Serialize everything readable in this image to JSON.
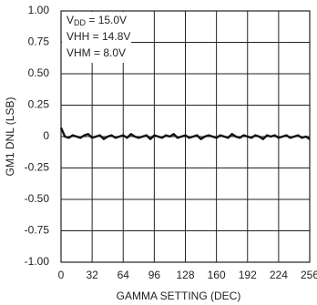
{
  "chart_data": {
    "type": "line",
    "xlabel": "GAMMA SETTING (DEC)",
    "ylabel": "GM1 DNL (LSB)",
    "annotations": [
      [
        "V",
        "DD",
        " = 15.0V"
      ],
      [
        "VHH = 14.8V"
      ],
      [
        "VHM = 8.0V"
      ]
    ],
    "x": [
      0,
      4,
      8,
      12,
      16,
      20,
      24,
      28,
      32,
      36,
      40,
      44,
      48,
      52,
      56,
      60,
      64,
      68,
      72,
      76,
      80,
      84,
      88,
      92,
      96,
      100,
      104,
      108,
      112,
      116,
      120,
      124,
      128,
      132,
      136,
      140,
      144,
      148,
      152,
      156,
      160,
      164,
      168,
      172,
      176,
      180,
      184,
      188,
      192,
      196,
      200,
      204,
      208,
      212,
      216,
      220,
      224,
      228,
      232,
      236,
      240,
      244,
      248,
      252,
      256
    ],
    "series": [
      {
        "name": "GM1 DNL",
        "color": "#111111",
        "values": [
          0.07,
          0.0,
          -0.01,
          0.01,
          0.0,
          -0.01,
          0.01,
          0.02,
          -0.01,
          0.0,
          0.01,
          -0.02,
          0.0,
          0.01,
          -0.01,
          0.0,
          0.01,
          -0.01,
          0.02,
          0.0,
          -0.01,
          0.0,
          0.01,
          -0.02,
          0.01,
          0.0,
          -0.01,
          0.01,
          0.0,
          0.02,
          -0.01,
          0.0,
          0.01,
          -0.01,
          0.0,
          0.01,
          -0.02,
          0.0,
          0.01,
          0.0,
          -0.01,
          0.01,
          0.0,
          -0.01,
          0.02,
          0.0,
          -0.01,
          0.01,
          0.0,
          -0.01,
          0.01,
          0.0,
          -0.02,
          0.01,
          0.0,
          0.01,
          -0.01,
          0.0,
          0.01,
          -0.01,
          0.0,
          0.01,
          -0.01,
          0.0,
          -0.02
        ]
      }
    ],
    "xlim": [
      0,
      256
    ],
    "xticks": [
      0,
      32,
      64,
      96,
      128,
      160,
      192,
      224,
      256
    ],
    "ylim": [
      -1,
      1
    ],
    "yticks": [
      {
        "value": -1,
        "label": "-1.00"
      },
      {
        "value": -0.75,
        "label": "-0.75"
      },
      {
        "value": -0.5,
        "label": "-0.50"
      },
      {
        "value": -0.25,
        "label": "-0.25"
      },
      0,
      {
        "value": 0.25,
        "label": "0.25"
      },
      {
        "value": 0.5,
        "label": "0.50"
      },
      {
        "value": 0.75,
        "label": "0.75"
      },
      {
        "value": 1,
        "label": "1.00"
      }
    ],
    "grid": true
  }
}
